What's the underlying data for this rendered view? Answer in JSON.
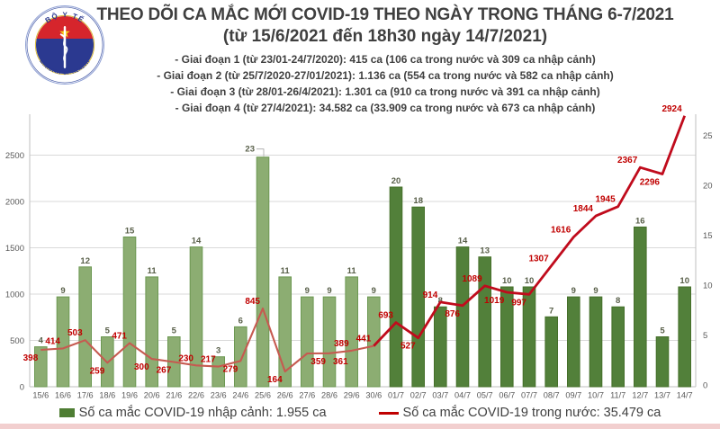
{
  "header": {
    "title": "THEO DÕI CA MẮC MỚI COVID-19 THEO NGÀY TRONG THÁNG 6-7/2021",
    "subtitle": "(từ 15/6/2021 đến 18h30 ngày 14/7/2021)",
    "bullets": [
      "- Giai đoạn 1 (từ 23/01-24/7/2020): 415 ca (106 ca trong nước và 309 ca nhập cảnh)",
      "- Giai đoạn 2 (từ 25/7/2020-27/01/2021): 1.136 ca (554 ca trong nước và 582 ca nhập cảnh)",
      "- Giai đoạn 3 (từ 28/01-26/4/2021): 1.301 ca (910 ca trong nước và 391 ca nhập cảnh)",
      "- Giai đoạn 4 (từ 27/4/2021): 34.582 ca (33.909 ca trong nước và 673 ca nhập cảnh)"
    ]
  },
  "logo": {
    "top_text": "BỘ Y TẾ",
    "bottom_text": "MINISTRY OF HEALTH"
  },
  "legend": {
    "imported_label": "Số ca mắc COVID-19 nhập cảnh: 1.955 ca",
    "domestic_label": "Số ca mắc COVID-19 trong nước: 35.479 ca"
  },
  "chart_data": {
    "type": "bar+line combo",
    "categories": [
      "15/6",
      "16/6",
      "17/6",
      "18/6",
      "19/6",
      "20/6",
      "21/6",
      "22/6",
      "23/6",
      "24/6",
      "25/6",
      "26/6",
      "27/6",
      "28/6",
      "29/6",
      "30/6",
      "01/7",
      "02/7",
      "03/7",
      "04/7",
      "05/7",
      "06/7",
      "07/7",
      "08/7",
      "09/7",
      "10/7",
      "11/7",
      "12/7",
      "13/7",
      "14/7"
    ],
    "series": [
      {
        "name": "Số ca mắc COVID-19 nhập cảnh",
        "type": "bar",
        "axis": "right",
        "values": [
          4,
          9,
          12,
          5,
          15,
          11,
          5,
          14,
          3,
          6,
          23,
          11,
          9,
          9,
          11,
          9,
          20,
          18,
          8,
          14,
          13,
          10,
          10,
          7,
          9,
          9,
          8,
          16,
          5,
          10
        ]
      },
      {
        "name": "Số ca mắc COVID-19 trong nước",
        "type": "line",
        "axis": "left",
        "values": [
          398,
          414,
          503,
          259,
          471,
          300,
          267,
          230,
          217,
          279,
          845,
          164,
          359,
          361,
          389,
          441,
          693,
          527,
          914,
          876,
          1089,
          1019,
          997,
          1307,
          1616,
          1844,
          1945,
          2367,
          2296,
          2924
        ],
        "label_placements": [
          "bl",
          "al",
          "al",
          "bl",
          "al",
          "bl",
          "bl",
          "al",
          "al",
          "bl",
          "al",
          "bl",
          "br",
          "br",
          "al",
          "al",
          "al",
          "bl",
          "al",
          "bl",
          "al",
          "bl",
          "bl",
          "al",
          "al",
          "al",
          "al",
          "al",
          "bl",
          "al"
        ]
      }
    ],
    "left_axis": {
      "ticks": [
        0,
        500,
        1000,
        1500,
        2000,
        2500
      ]
    },
    "right_axis": {
      "ticks": [
        0,
        5,
        10,
        15,
        20,
        25
      ]
    },
    "june_days": 16,
    "callout_bar_index": 10,
    "grid": true,
    "legend_position": "bottom",
    "colors": {
      "bar_june": "#8cad72",
      "bar_june_border": "#6c9852",
      "bar_july": "#52803a",
      "bar_july_border": "#456f2a",
      "line_june": "#c65a50",
      "line_july": "#c00b1c",
      "line_label": "#c00000",
      "bar_label": "#585f49",
      "grid_line": "#d9d9d9",
      "axis_line": "#bfbfbf",
      "axis_text": "#595959"
    }
  }
}
